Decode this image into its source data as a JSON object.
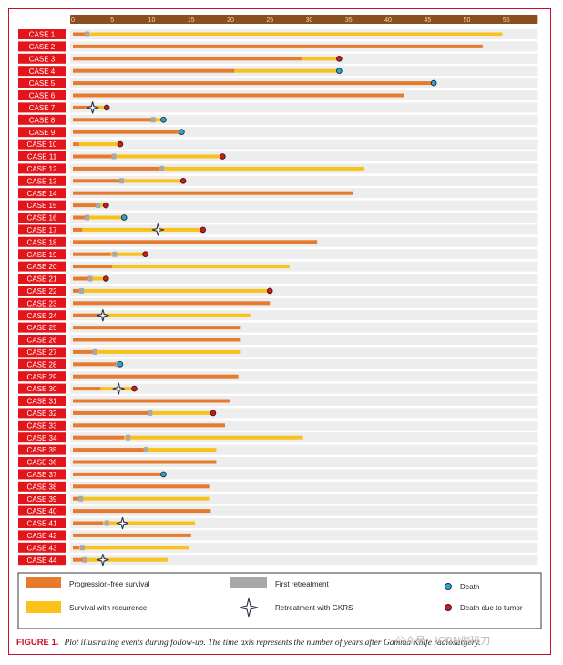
{
  "chart_data": {
    "type": "bar",
    "xlim": [
      0,
      59
    ],
    "xticks": [
      0,
      5,
      10,
      15,
      20,
      25,
      30,
      35,
      40,
      45,
      50,
      55
    ],
    "cases": [
      {
        "label": "CASE 1",
        "pfs": 1.5,
        "total": 54.5,
        "retreat": [
          1.8
        ],
        "gkrs": [],
        "end": "none"
      },
      {
        "label": "CASE 2",
        "pfs": 52,
        "total": 52,
        "retreat": [],
        "gkrs": [],
        "end": "none"
      },
      {
        "label": "CASE 3",
        "pfs": 29,
        "total": 33.8,
        "retreat": [],
        "gkrs": [],
        "end": "tumor"
      },
      {
        "label": "CASE 4",
        "pfs": 20.5,
        "total": 33.8,
        "retreat": [],
        "gkrs": [],
        "end": "death"
      },
      {
        "label": "CASE 5",
        "pfs": 45.8,
        "total": 45.8,
        "retreat": [],
        "gkrs": [],
        "end": "death"
      },
      {
        "label": "CASE 6",
        "pfs": 42,
        "total": 42,
        "retreat": [],
        "gkrs": [],
        "end": "none"
      },
      {
        "label": "CASE 7",
        "pfs": 2.5,
        "total": 4.3,
        "retreat": [],
        "gkrs": [
          2.5
        ],
        "end": "tumor"
      },
      {
        "label": "CASE 8",
        "pfs": 10,
        "total": 11.5,
        "retreat": [
          10.2
        ],
        "gkrs": [],
        "end": "death"
      },
      {
        "label": "CASE 9",
        "pfs": 13.8,
        "total": 13.8,
        "retreat": [],
        "gkrs": [],
        "end": "death"
      },
      {
        "label": "CASE 10",
        "pfs": 0.8,
        "total": 6,
        "retreat": [],
        "gkrs": [],
        "end": "tumor"
      },
      {
        "label": "CASE 11",
        "pfs": 5,
        "total": 19,
        "retreat": [
          5.2
        ],
        "gkrs": [],
        "end": "tumor"
      },
      {
        "label": "CASE 12",
        "pfs": 11,
        "total": 37,
        "retreat": [
          11.3
        ],
        "gkrs": [],
        "end": "none"
      },
      {
        "label": "CASE 13",
        "pfs": 6,
        "total": 14,
        "retreat": [
          6.2
        ],
        "gkrs": [],
        "end": "tumor"
      },
      {
        "label": "CASE 14",
        "pfs": 35.5,
        "total": 35.5,
        "retreat": [],
        "gkrs": [],
        "end": "none"
      },
      {
        "label": "CASE 15",
        "pfs": 3.2,
        "total": 4.2,
        "retreat": [
          3.2
        ],
        "gkrs": [],
        "end": "tumor"
      },
      {
        "label": "CASE 16",
        "pfs": 1.5,
        "total": 6.5,
        "retreat": [
          1.8
        ],
        "gkrs": [],
        "end": "death"
      },
      {
        "label": "CASE 17",
        "pfs": 1.2,
        "total": 16.5,
        "retreat": [],
        "gkrs": [
          10.8
        ],
        "end": "tumor"
      },
      {
        "label": "CASE 18",
        "pfs": 31,
        "total": 31,
        "retreat": [],
        "gkrs": [],
        "end": "none"
      },
      {
        "label": "CASE 19",
        "pfs": 4.8,
        "total": 9.2,
        "retreat": [
          5.3
        ],
        "gkrs": [],
        "end": "tumor"
      },
      {
        "label": "CASE 20",
        "pfs": 5,
        "total": 27.5,
        "retreat": [],
        "gkrs": [],
        "end": "none"
      },
      {
        "label": "CASE 21",
        "pfs": 2,
        "total": 4.2,
        "retreat": [
          2.2
        ],
        "gkrs": [],
        "end": "tumor"
      },
      {
        "label": "CASE 22",
        "pfs": 0.8,
        "total": 25,
        "retreat": [
          1.1
        ],
        "gkrs": [],
        "end": "tumor"
      },
      {
        "label": "CASE 23",
        "pfs": 25,
        "total": 25,
        "retreat": [],
        "gkrs": [],
        "end": "none"
      },
      {
        "label": "CASE 24",
        "pfs": 3.8,
        "total": 22.5,
        "retreat": [],
        "gkrs": [
          3.8
        ],
        "end": "none"
      },
      {
        "label": "CASE 25",
        "pfs": 21.2,
        "total": 21.2,
        "retreat": [],
        "gkrs": [],
        "end": "none"
      },
      {
        "label": "CASE 26",
        "pfs": 21.2,
        "total": 21.2,
        "retreat": [],
        "gkrs": [],
        "end": "none"
      },
      {
        "label": "CASE 27",
        "pfs": 2.5,
        "total": 21.2,
        "retreat": [
          2.8
        ],
        "gkrs": [],
        "end": "none"
      },
      {
        "label": "CASE 28",
        "pfs": 5.5,
        "total": 6,
        "retreat": [
          5.7
        ],
        "gkrs": [],
        "end": "death"
      },
      {
        "label": "CASE 29",
        "pfs": 21,
        "total": 21,
        "retreat": [],
        "gkrs": [],
        "end": "none"
      },
      {
        "label": "CASE 30",
        "pfs": 3.5,
        "total": 7.8,
        "retreat": [],
        "gkrs": [
          5.8
        ],
        "end": "tumor"
      },
      {
        "label": "CASE 31",
        "pfs": 20,
        "total": 20,
        "retreat": [],
        "gkrs": [],
        "end": "none"
      },
      {
        "label": "CASE 32",
        "pfs": 9.5,
        "total": 17.8,
        "retreat": [
          9.8
        ],
        "gkrs": [],
        "end": "tumor"
      },
      {
        "label": "CASE 33",
        "pfs": 19.3,
        "total": 19.3,
        "retreat": [],
        "gkrs": [],
        "end": "none"
      },
      {
        "label": "CASE 34",
        "pfs": 6.5,
        "total": 29.2,
        "retreat": [
          7
        ],
        "gkrs": [],
        "end": "none"
      },
      {
        "label": "CASE 35",
        "pfs": 9,
        "total": 18.2,
        "retreat": [
          9.3
        ],
        "gkrs": [],
        "end": "none"
      },
      {
        "label": "CASE 36",
        "pfs": 18.2,
        "total": 18.2,
        "retreat": [],
        "gkrs": [],
        "end": "none"
      },
      {
        "label": "CASE 37",
        "pfs": 11.5,
        "total": 11.5,
        "retreat": [],
        "gkrs": [],
        "end": "death"
      },
      {
        "label": "CASE 38",
        "pfs": 17.3,
        "total": 17.3,
        "retreat": [],
        "gkrs": [],
        "end": "none"
      },
      {
        "label": "CASE 39",
        "pfs": 0.8,
        "total": 17.3,
        "retreat": [
          1
        ],
        "gkrs": [],
        "end": "none"
      },
      {
        "label": "CASE 40",
        "pfs": 17.5,
        "total": 17.5,
        "retreat": [],
        "gkrs": [],
        "end": "none"
      },
      {
        "label": "CASE 41",
        "pfs": 3.8,
        "total": 15.5,
        "retreat": [
          4.3
        ],
        "gkrs": [
          6.3
        ],
        "end": "none"
      },
      {
        "label": "CASE 42",
        "pfs": 15,
        "total": 15,
        "retreat": [],
        "gkrs": [],
        "end": "none"
      },
      {
        "label": "CASE 43",
        "pfs": 0.8,
        "total": 14.8,
        "retreat": [
          1.2
        ],
        "gkrs": [],
        "end": "none"
      },
      {
        "label": "CASE 44",
        "pfs": 1.5,
        "total": 12,
        "retreat": [
          1.5
        ],
        "gkrs": [
          3.8
        ],
        "end": "none"
      }
    ],
    "legend": [
      {
        "key": "pfs",
        "label": "Progression-free survival"
      },
      {
        "key": "rec",
        "label": "Survival with recurrence"
      },
      {
        "key": "retreat",
        "label": "First retreatment"
      },
      {
        "key": "gkrs",
        "label": "Retreatment with GKRS"
      },
      {
        "key": "death",
        "label": "Death"
      },
      {
        "key": "tumor",
        "label": "Death due to tumor"
      }
    ],
    "colors": {
      "pfs": "#e67a2e",
      "rec": "#f9c21b",
      "retreat": "#a8a8a8",
      "death": "#29a3d9",
      "tumor": "#d4161b",
      "case_label_bg": "#e3151b",
      "axis_bar": "#8a4f1e",
      "row_bg": "#ededed"
    }
  },
  "caption": {
    "label": "FIGURE 1.",
    "text": "Plot illustrating events during follow-up. The time axis represents the number of years after Gamma Knife radiosurgery."
  },
  "watermark": "公众号 · ICON伽玛刀"
}
